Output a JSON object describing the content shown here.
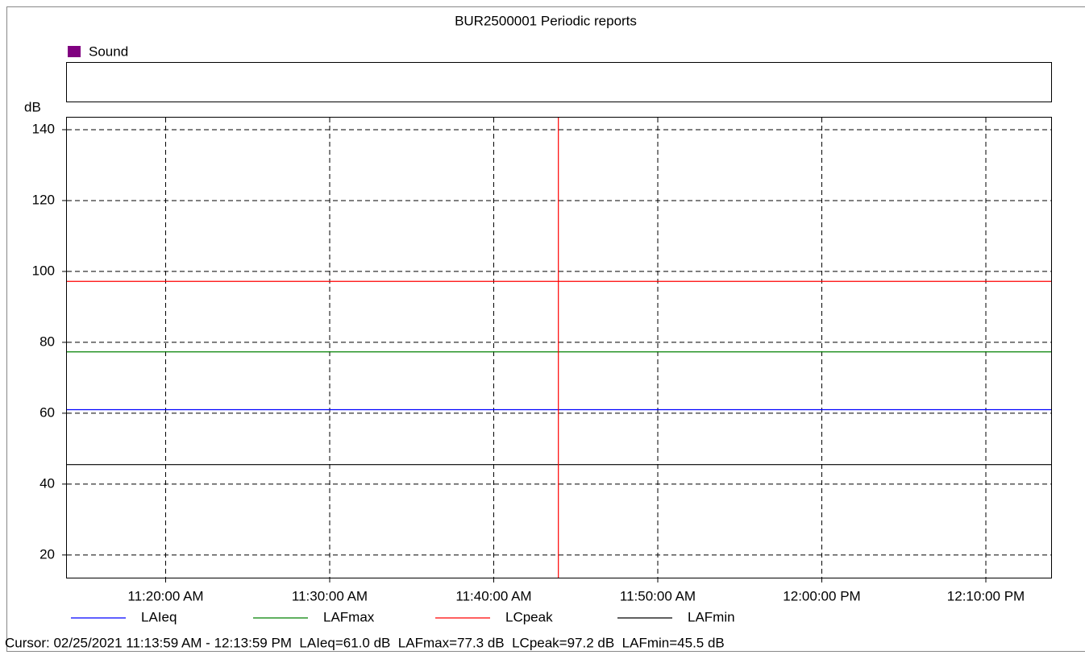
{
  "chart_data": {
    "type": "line",
    "title": "BUR2500001 Periodic reports",
    "group": {
      "name": "Sound",
      "color": "#800080"
    },
    "y_label": "dB",
    "x": [
      673.98,
      733.98
    ],
    "xlim": [
      673.98,
      733.98
    ],
    "xticks": [
      {
        "value": 680,
        "label": "11:20:00 AM"
      },
      {
        "value": 690,
        "label": "11:30:00 AM"
      },
      {
        "value": 700,
        "label": "11:40:00 AM"
      },
      {
        "value": 710,
        "label": "11:50:00 AM"
      },
      {
        "value": 720,
        "label": "12:00:00 PM"
      },
      {
        "value": 730,
        "label": "12:10:00 PM"
      }
    ],
    "ylim": [
      13.6,
      143.4
    ],
    "yticks": [
      20,
      40,
      60,
      80,
      100,
      120,
      140
    ],
    "grid": true,
    "series": [
      {
        "name": "LAIeq",
        "color": "#0000ff",
        "values": [
          61.0,
          61.0
        ]
      },
      {
        "name": "LAFmax",
        "color": "#008000",
        "values": [
          77.3,
          77.3
        ]
      },
      {
        "name": "LCpeak",
        "color": "#ff0000",
        "values": [
          97.2,
          97.2
        ]
      },
      {
        "name": "LAFmin",
        "color": "#000000",
        "values": [
          45.5,
          45.5
        ]
      }
    ],
    "cursor": {
      "x": 703.94,
      "color": "#ff0000"
    },
    "status": "Cursor: 02/25/2021 11:13:59 AM - 12:13:59 PM  LAIeq=61.0 dB  LAFmax=77.3 dB  LCpeak=97.2 dB  LAFmin=45.5 dB"
  }
}
